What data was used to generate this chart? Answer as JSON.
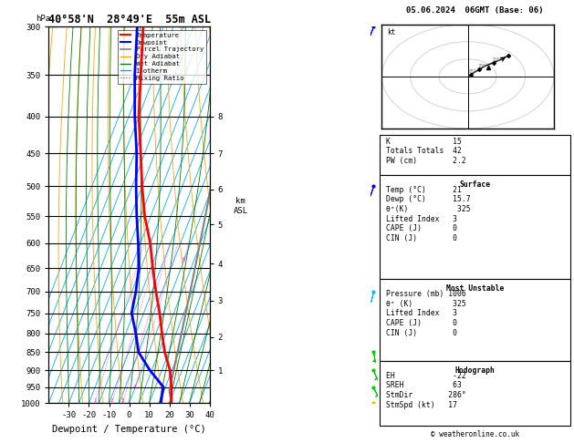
{
  "title": "40°58'N  28°49'E  55m ASL",
  "date_str": "05.06.2024  06GMT (Base: 06)",
  "xlabel": "Dewpoint / Temperature (°C)",
  "ylabel_left": "hPa",
  "pressure_major": [
    300,
    350,
    400,
    450,
    500,
    550,
    600,
    650,
    700,
    750,
    800,
    850,
    900,
    950,
    1000
  ],
  "temp_ticks": [
    -30,
    -20,
    -10,
    0,
    10,
    20,
    30,
    40
  ],
  "color_temp": "#ff0000",
  "color_dewp": "#0000ff",
  "color_parcel": "#808080",
  "color_dry_adiabat": "#ffa500",
  "color_wet_adiabat": "#008000",
  "color_isotherm": "#00aaff",
  "color_mixing": "#ff00ff",
  "color_bg": "#ffffff",
  "temp_profile_T": [
    21,
    18,
    14,
    8,
    3,
    -2,
    -8,
    -14,
    -20,
    -28,
    -35,
    -42,
    -50,
    -57,
    -65
  ],
  "temp_profile_P": [
    1000,
    950,
    900,
    850,
    800,
    750,
    700,
    650,
    600,
    550,
    500,
    450,
    400,
    350,
    300
  ],
  "dewp_profile_T": [
    15.7,
    14,
    4,
    -5,
    -10,
    -16,
    -18,
    -21,
    -26,
    -32,
    -38,
    -44,
    -52,
    -60,
    -68
  ],
  "dewp_profile_P": [
    1000,
    950,
    900,
    850,
    800,
    750,
    700,
    650,
    600,
    550,
    500,
    450,
    400,
    350,
    300
  ],
  "lcl_pressure": 960,
  "mixing_ratio_values": [
    1,
    2,
    3,
    4,
    6,
    8,
    10,
    15,
    20,
    25
  ],
  "km_pressures": [
    900,
    810,
    720,
    640,
    565,
    505,
    450,
    400
  ],
  "wind_barbs_right": [
    {
      "pressure": 300,
      "u": 8,
      "v": 20,
      "color": "#0000ff"
    },
    {
      "pressure": 500,
      "u": 5,
      "v": 15,
      "color": "#0000ff"
    },
    {
      "pressure": 700,
      "u": 2,
      "v": 8,
      "color": "#00bfff"
    },
    {
      "pressure": 850,
      "u": -1,
      "v": 6,
      "color": "#00cc00"
    },
    {
      "pressure": 900,
      "u": -2,
      "v": 5,
      "color": "#00cc00"
    },
    {
      "pressure": 950,
      "u": -2,
      "v": 4,
      "color": "#00cc00"
    },
    {
      "pressure": 1000,
      "u": -3,
      "v": 3,
      "color": "#cccc00"
    }
  ],
  "hodo_trace_u": [
    1,
    2,
    4,
    6,
    9,
    12,
    14
  ],
  "hodo_trace_v": [
    1,
    2,
    4,
    6,
    8,
    10,
    12
  ],
  "hodo_storm_u": 7,
  "hodo_storm_v": 5,
  "stats_k": 15,
  "stats_tt": 42,
  "stats_pw": "2.2",
  "surf_temp": 21,
  "surf_dewp": 15.7,
  "surf_theta_e": 325,
  "surf_li": 3,
  "surf_cape": 0,
  "surf_cin": 0,
  "mu_pres": 1006,
  "mu_theta_e": 325,
  "mu_li": 3,
  "mu_cape": 0,
  "mu_cin": 0,
  "hodo_eh": -22,
  "hodo_sreh": 63,
  "hodo_stmdir": "286°",
  "hodo_stmspd": 17
}
